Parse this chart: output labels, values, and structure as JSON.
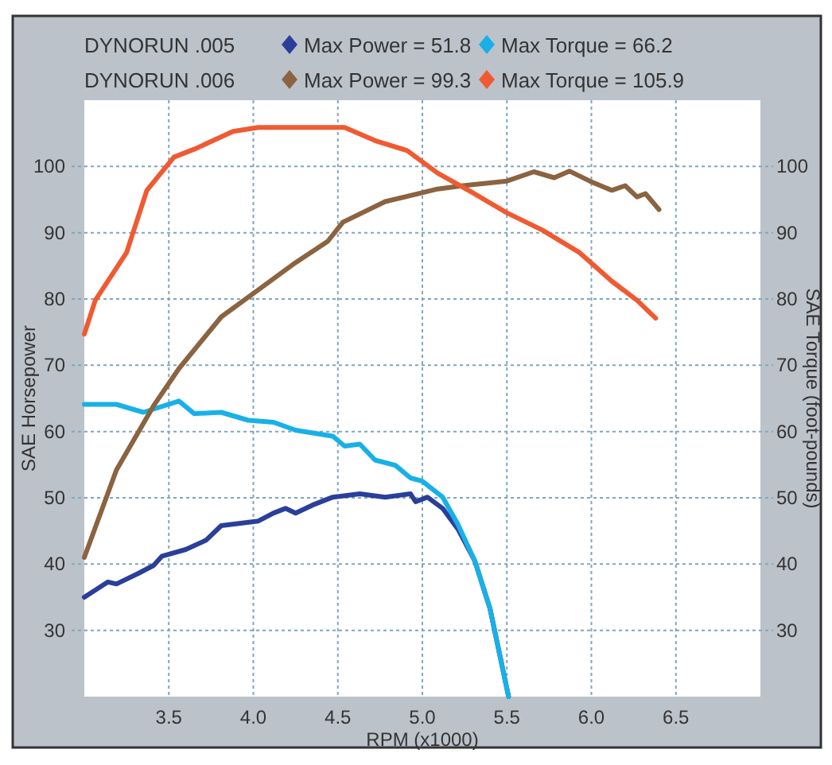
{
  "chart_data": {
    "type": "line",
    "xlabel": "RPM (x1000)",
    "ylabel": "SAE Horsepower",
    "y2label": "SAE Torque (foot-pounds)",
    "annotations": [
      "DYNORUN .005",
      "DYNORUN .006"
    ],
    "xlim": [
      3.0,
      7.0
    ],
    "xticks": [
      3.5,
      {
        "value": 4,
        "label": "4.0"
      },
      4.5,
      {
        "value": 5,
        "label": "5.0"
      },
      5.5,
      {
        "value": 6,
        "label": "6.0"
      },
      6.5
    ],
    "ylim": [
      20,
      110
    ],
    "yticks": [
      30,
      40,
      50,
      60,
      70,
      80,
      90,
      100
    ],
    "y2lim": [
      20,
      110
    ],
    "y2ticks": [
      30,
      40,
      50,
      60,
      70,
      80,
      90,
      100
    ],
    "grid": true,
    "legend": "top",
    "series": [
      {
        "name": "Max Power = 51.8",
        "color": "#2a3f9a",
        "x": [
          3.0,
          3.14,
          3.19,
          3.32,
          3.41,
          3.46,
          3.6,
          3.72,
          3.81,
          4.03,
          4.12,
          4.19,
          4.25,
          4.35,
          4.47,
          4.63,
          4.78,
          4.93,
          4.96,
          5.03,
          5.12,
          5.21,
          5.31,
          5.4,
          5.51
        ],
        "values": [
          35,
          37.3,
          37,
          38.6,
          39.8,
          41.2,
          42.2,
          43.6,
          45.8,
          46.5,
          47.7,
          48.4,
          47.7,
          48.9,
          50.1,
          50.6,
          50.1,
          50.6,
          49.4,
          50.1,
          48.4,
          45.3,
          40.5,
          33.3,
          20
        ]
      },
      {
        "name": "Max Torque = 66.2",
        "color": "#19b0e8",
        "x": [
          3.0,
          3.19,
          3.35,
          3.56,
          3.65,
          3.81,
          3.97,
          4.12,
          4.25,
          4.47,
          4.54,
          4.63,
          4.72,
          4.84,
          4.93,
          5.0,
          5.12,
          5.21,
          5.31,
          5.4,
          5.51
        ],
        "values": [
          64.1,
          64.1,
          62.9,
          64.6,
          62.7,
          62.9,
          61.7,
          61.4,
          60.2,
          59.3,
          57.8,
          58.1,
          55.7,
          54.9,
          53,
          52.5,
          50.1,
          46,
          40.5,
          33.3,
          20
        ]
      },
      {
        "name": "Max Power = 99.3",
        "color": "#8b6340",
        "x": [
          3.0,
          3.19,
          3.41,
          3.56,
          3.81,
          4.03,
          4.25,
          4.44,
          4.53,
          4.78,
          5.09,
          5.24,
          5.5,
          5.66,
          5.78,
          5.87,
          5.99,
          6.12,
          6.2,
          6.27,
          6.32,
          6.4
        ],
        "values": [
          41,
          54.2,
          63.9,
          69.5,
          77.3,
          81.4,
          85.5,
          88.7,
          91.6,
          94.7,
          96.6,
          97.1,
          97.8,
          99.2,
          98.3,
          99.3,
          97.8,
          96.4,
          97.1,
          95.4,
          95.9,
          93.5
        ]
      },
      {
        "name": "Max Torque = 105.9",
        "color": "#f05a32",
        "x": [
          3.0,
          3.065,
          3.25,
          3.37,
          3.53,
          3.65,
          3.88,
          4.03,
          4.54,
          4.72,
          4.91,
          5.09,
          5.3,
          5.5,
          5.71,
          5.93,
          6.12,
          6.27,
          6.38
        ],
        "values": [
          74.7,
          79.8,
          87,
          96.4,
          101.4,
          102.6,
          105.3,
          105.9,
          105.9,
          103.9,
          102.4,
          99,
          96,
          93,
          90.4,
          87,
          82.7,
          79.8,
          77.1
        ]
      }
    ]
  }
}
